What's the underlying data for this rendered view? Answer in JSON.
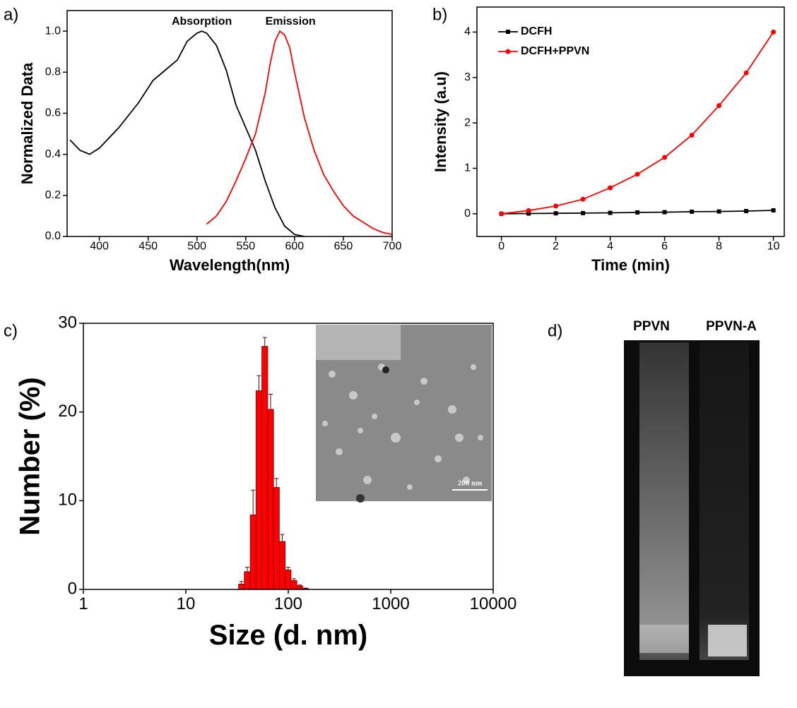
{
  "chart_data": [
    {
      "type": "line",
      "title": "a)",
      "xlabel": "Wavelength(nm)",
      "ylabel": "Normalized Data",
      "annotations": [
        "Absorption",
        "Emission"
      ],
      "xlim": [
        367,
        700
      ],
      "ylim": [
        0,
        1.1
      ],
      "xticks": [
        400,
        450,
        500,
        550,
        600,
        650,
        700
      ],
      "yticks": [
        {
          "value": 0,
          "label": "0.0"
        },
        0.2,
        0.4,
        0.6,
        0.8,
        {
          "value": 1,
          "label": "1.0"
        }
      ],
      "series": [
        {
          "name": "Absorption",
          "color": "#000000",
          "x": [
            370,
            380,
            390,
            400,
            420,
            440,
            455,
            470,
            480,
            490,
            500,
            505,
            510,
            520,
            530,
            540,
            550,
            560,
            570,
            580,
            590,
            600,
            610
          ],
          "values": [
            0.47,
            0.42,
            0.4,
            0.43,
            0.53,
            0.65,
            0.76,
            0.82,
            0.86,
            0.95,
            0.99,
            1.0,
            0.99,
            0.93,
            0.81,
            0.64,
            0.53,
            0.42,
            0.27,
            0.14,
            0.05,
            0.01,
            0.0
          ]
        },
        {
          "name": "Emission",
          "color": "#ff0000",
          "x": [
            510,
            520,
            530,
            540,
            550,
            560,
            570,
            575,
            580,
            585,
            590,
            595,
            600,
            610,
            620,
            630,
            640,
            650,
            660,
            670,
            680,
            690,
            700
          ],
          "values": [
            0.06,
            0.1,
            0.17,
            0.27,
            0.38,
            0.5,
            0.7,
            0.84,
            0.95,
            1.0,
            0.98,
            0.92,
            0.8,
            0.58,
            0.42,
            0.3,
            0.22,
            0.15,
            0.1,
            0.07,
            0.04,
            0.02,
            0.01
          ]
        }
      ]
    },
    {
      "type": "line",
      "title": "b)",
      "xlabel": "Time (min)",
      "ylabel": "Intensity (a.u)",
      "legend": "upper left",
      "xlim": [
        -0.9,
        10.4
      ],
      "ylim": [
        -0.5,
        4.55
      ],
      "xticks": [
        0,
        2,
        4,
        6,
        8,
        10
      ],
      "yticks": [
        0,
        1,
        2,
        3,
        4
      ],
      "series": [
        {
          "name": "DCFH",
          "color": "#000000",
          "marker": "square",
          "x": [
            0,
            1,
            2,
            3,
            4,
            5,
            6,
            7,
            8,
            9,
            10
          ],
          "values": [
            0,
            0.005,
            0.01,
            0.015,
            0.02,
            0.03,
            0.035,
            0.045,
            0.05,
            0.06,
            0.075
          ]
        },
        {
          "name": "DCFH+PPVN",
          "color": "#ff0000",
          "marker": "circle",
          "x": [
            0,
            1,
            2,
            3,
            4,
            5,
            6,
            7,
            8,
            9,
            10
          ],
          "values": [
            0,
            0.07,
            0.17,
            0.32,
            0.57,
            0.87,
            1.24,
            1.73,
            2.38,
            3.1,
            4.0
          ]
        }
      ]
    },
    {
      "type": "histogram",
      "title": "c)",
      "xlabel": "Size (d. nm)",
      "ylabel": "Number (%)",
      "xscale": "log",
      "color": "#ff0000",
      "inset_label": "200 nm",
      "xlim": [
        1,
        10000
      ],
      "ylim": [
        0,
        30
      ],
      "xticks": [
        1,
        10,
        100,
        1000,
        10000
      ],
      "yticks": [
        0,
        10,
        20,
        30
      ],
      "bins": [
        32.7,
        37.2,
        42.5,
        48.4,
        55.2,
        63.0,
        71.8,
        81.8,
        93.3,
        106.4,
        121.3,
        138.4,
        157.8
      ],
      "values": [
        0.6,
        2.0,
        8.4,
        22.4,
        27.4,
        20.3,
        11.5,
        5.4,
        2.2,
        1.0,
        0.4,
        0.1
      ],
      "errors": [
        0.3,
        0.5,
        2.8,
        1.7,
        1.0,
        1.7,
        1.0,
        0.8,
        0.3,
        0.2,
        0.1,
        0.05
      ]
    }
  ],
  "panel_d": {
    "label": "d)",
    "lanes": [
      "PPVN",
      "PPVN-A"
    ]
  }
}
